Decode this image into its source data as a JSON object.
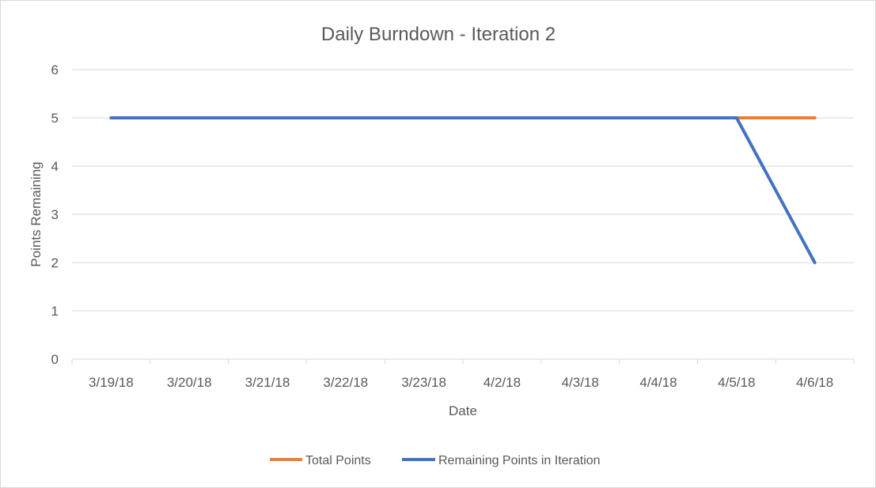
{
  "chart_data": {
    "type": "line",
    "title": "Daily Burndown - Iteration 2",
    "xlabel": "Date",
    "ylabel": "Points Remaining",
    "categories": [
      "3/19/18",
      "3/20/18",
      "3/21/18",
      "3/22/18",
      "3/23/18",
      "4/2/18",
      "4/3/18",
      "4/4/18",
      "4/5/18",
      "4/6/18"
    ],
    "ylim": [
      0,
      6
    ],
    "yticks": [
      "0",
      "1",
      "2",
      "3",
      "4",
      "5",
      "6"
    ],
    "grid": true,
    "legend_position": "bottom",
    "series": [
      {
        "name": "Total Points",
        "color": "#ED7D31",
        "values": [
          5,
          5,
          5,
          5,
          5,
          5,
          5,
          5,
          5,
          5
        ]
      },
      {
        "name": "Remaining Points in Iteration",
        "color": "#4472C4",
        "values": [
          5,
          5,
          5,
          5,
          5,
          5,
          5,
          5,
          5,
          2
        ]
      }
    ]
  }
}
